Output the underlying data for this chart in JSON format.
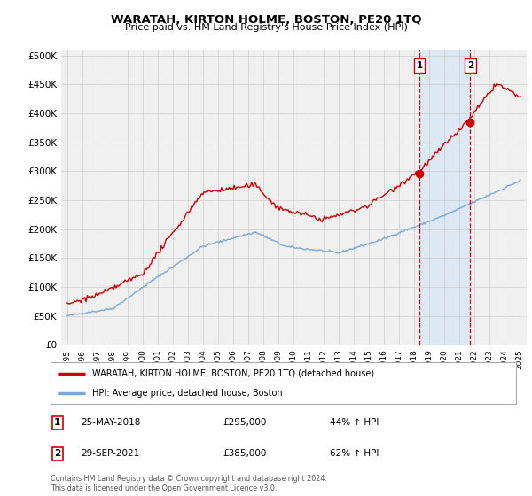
{
  "title": "WARATAH, KIRTON HOLME, BOSTON, PE20 1TQ",
  "subtitle": "Price paid vs. HM Land Registry's House Price Index (HPI)",
  "ylabel_ticks": [
    "£0",
    "£50K",
    "£100K",
    "£150K",
    "£200K",
    "£250K",
    "£300K",
    "£350K",
    "£400K",
    "£450K",
    "£500K"
  ],
  "ytick_values": [
    0,
    50000,
    100000,
    150000,
    200000,
    250000,
    300000,
    350000,
    400000,
    450000,
    500000
  ],
  "ylim": [
    0,
    510000
  ],
  "x_start_year": 1995,
  "x_end_year": 2025,
  "marker1_year": 2018.38,
  "marker1_value": 295000,
  "marker2_year": 2021.75,
  "marker2_value": 385000,
  "legend_property_label": "WARATAH, KIRTON HOLME, BOSTON, PE20 1TQ (detached house)",
  "legend_hpi_label": "HPI: Average price, detached house, Boston",
  "footnote": "Contains HM Land Registry data © Crown copyright and database right 2024.\nThis data is licensed under the Open Government Licence v3.0.",
  "property_color": "#cc0000",
  "hpi_color": "#7aa8d4",
  "background_color": "#ffffff",
  "plot_bg_color": "#f0f0f0",
  "highlight_bg_color": "#dce9f5",
  "grid_color": "#cccccc",
  "dashed_color": "#cc0000"
}
